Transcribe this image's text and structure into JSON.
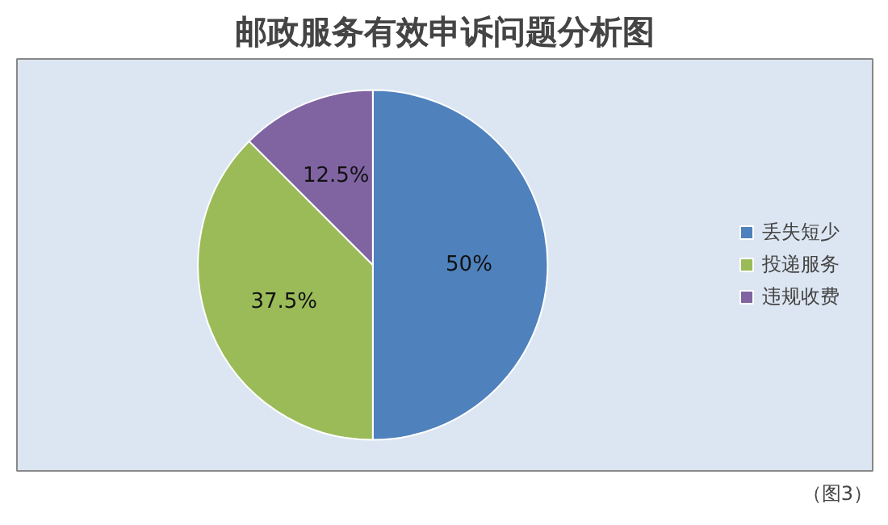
{
  "chart_data": {
    "type": "pie",
    "title": "邮政服务有效申诉问题分析图",
    "categories": [
      "丢失短少",
      "投递服务",
      "违规收费"
    ],
    "values": [
      50,
      37.5,
      12.5
    ],
    "colors": [
      "#4f81bd",
      "#9bbb59",
      "#8064a2"
    ],
    "value_labels": [
      "50%",
      "37.5%",
      "12.5%"
    ],
    "legend": "right",
    "annotations": [
      "（图3）"
    ]
  }
}
